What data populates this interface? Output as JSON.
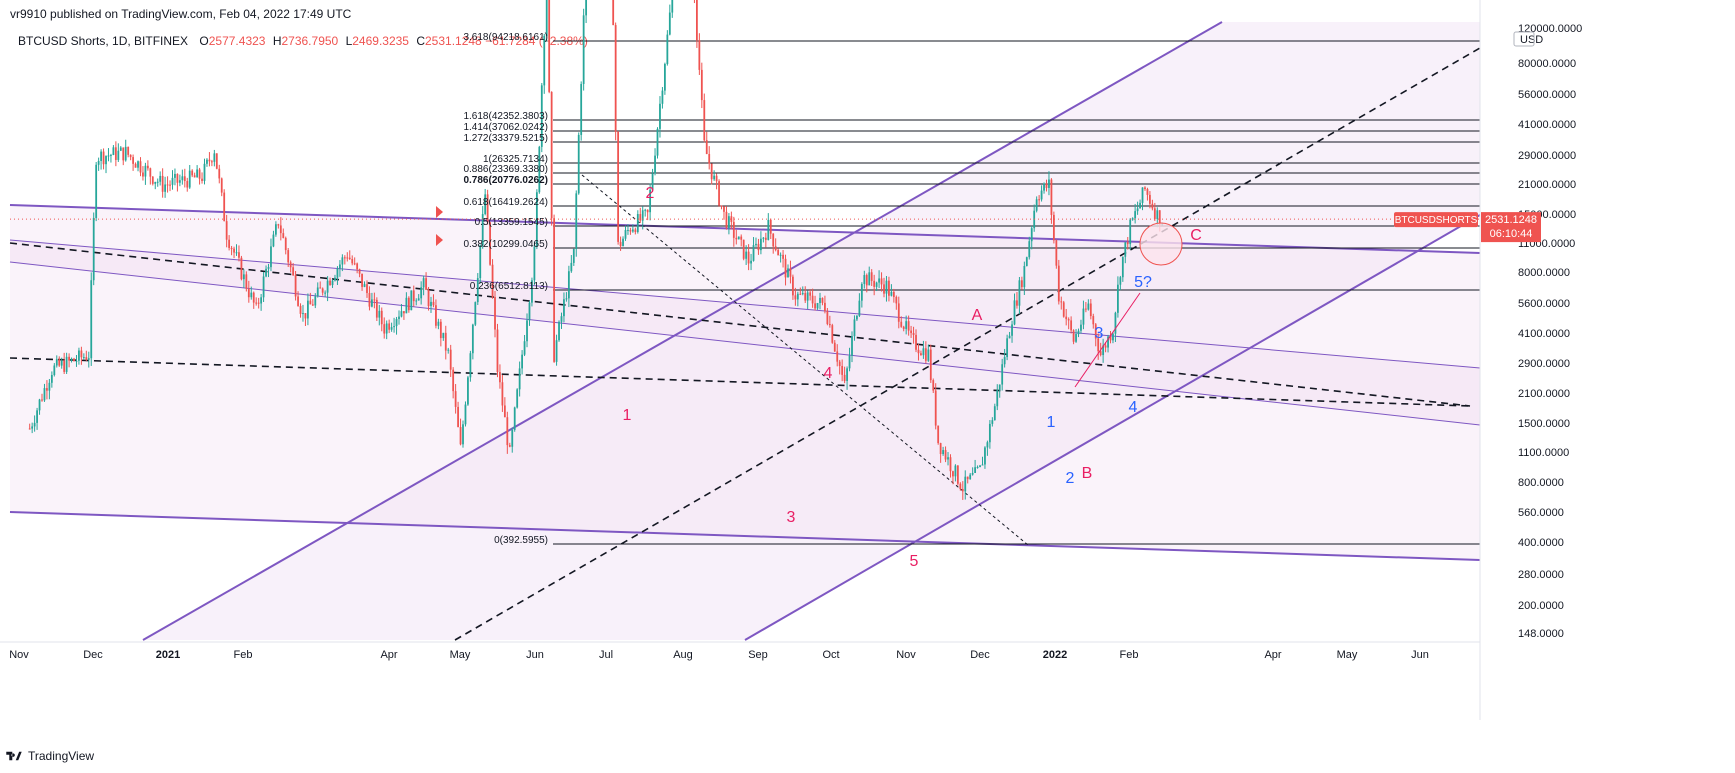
{
  "header": {
    "published": "vr9910 published on TradingView.com, Feb 04, 2022 17:49 UTC"
  },
  "legend": {
    "symbol": "BTCUSD Shorts, 1D, BITFINEX",
    "open_label": "O",
    "open": "2577.4323",
    "high_label": "H",
    "high": "2736.7950",
    "low_label": "L",
    "low": "2469.3235",
    "close_label": "C",
    "close": "2531.1248",
    "change": "−61.7284 (−2.38%)"
  },
  "price_axis": {
    "currency": "USD",
    "ticks": [
      "120000.0000",
      "80000.0000",
      "56000.0000",
      "41000.0000",
      "29000.0000",
      "21000.0000",
      "15000.0000",
      "11000.0000",
      "8000.0000",
      "5600.0000",
      "4100.0000",
      "2900.0000",
      "2100.0000",
      "1500.0000",
      "1100.0000",
      "800.0000",
      "560.0000",
      "400.0000",
      "280.0000",
      "200.0000",
      "148.0000"
    ],
    "last_label": "BTCUSDSHORTS",
    "last_price": "2531.1248",
    "countdown": "06:10:44"
  },
  "time_axis": [
    "Nov",
    "Dec",
    "2021",
    "Feb",
    "Apr",
    "May",
    "Jun",
    "Jul",
    "Aug",
    "Sep",
    "Oct",
    "Nov",
    "Dec",
    "2022",
    "Feb",
    "Apr",
    "May",
    "Jun"
  ],
  "fib_levels": [
    {
      "label": "3.618(94218.6161)",
      "bold": false
    },
    {
      "label": "1.618(42352.3803)",
      "bold": false
    },
    {
      "label": "1.414(37062.0242)",
      "bold": false
    },
    {
      "label": "1.272(33379.5215)",
      "bold": false
    },
    {
      "label": "1(26325.7134)",
      "bold": false
    },
    {
      "label": "0.886(23369.3380)",
      "bold": false
    },
    {
      "label": "0.786(20776.0262)",
      "bold": true
    },
    {
      "label": "0.618(16419.2624)",
      "bold": false
    },
    {
      "label": "0.5(13359.1545)",
      "bold": false
    },
    {
      "label": "0.382(10299.0465)",
      "bold": false
    },
    {
      "label": "0.236(6512.8113)",
      "bold": false
    },
    {
      "label": "0(392.5955)",
      "bold": false
    }
  ],
  "wave_labels": [
    {
      "text": "1",
      "color": "#e91e63"
    },
    {
      "text": "2",
      "color": "#e91e63"
    },
    {
      "text": "3",
      "color": "#e91e63"
    },
    {
      "text": "4",
      "color": "#e91e63"
    },
    {
      "text": "5",
      "color": "#e91e63"
    },
    {
      "text": "A",
      "color": "#e91e63"
    },
    {
      "text": "B",
      "color": "#e91e63"
    },
    {
      "text": "C",
      "color": "#e91e63"
    },
    {
      "text": "1",
      "color": "#2962ff"
    },
    {
      "text": "2",
      "color": "#2962ff"
    },
    {
      "text": "3",
      "color": "#2962ff"
    },
    {
      "text": "4",
      "color": "#2962ff"
    },
    {
      "text": "5?",
      "color": "#2962ff"
    }
  ],
  "footer": {
    "brand": "TradingView"
  },
  "colors": {
    "up": "#26a69a",
    "down": "#ef5350",
    "channel": "#7e57c2",
    "fill": "#f3e5f5",
    "wave_red": "#e91e63",
    "wave_blue": "#2962ff"
  },
  "chart_data": {
    "type": "candlestick",
    "title": "BTCUSD Shorts, 1D, BITFINEX",
    "y_scale": "log",
    "ylim": [
      120,
      120000
    ],
    "x_range": [
      "2020-11",
      "2022-06"
    ],
    "close_path": [
      [
        "2020-11-01",
        600
      ],
      [
        "2020-11-10",
        900
      ],
      [
        "2020-11-25",
        1000
      ],
      [
        "2020-11-28",
        3900
      ],
      [
        "2020-12-10",
        4000
      ],
      [
        "2020-12-25",
        3200
      ],
      [
        "2021-01-10",
        3400
      ],
      [
        "2021-01-15",
        4100
      ],
      [
        "2021-01-20",
        2300
      ],
      [
        "2021-02-01",
        1350
      ],
      [
        "2021-02-10",
        2500
      ],
      [
        "2021-02-20",
        1300
      ],
      [
        "2021-03-10",
        2000
      ],
      [
        "2021-03-25",
        1200
      ],
      [
        "2021-04-10",
        1600
      ],
      [
        "2021-04-20",
        1000
      ],
      [
        "2021-04-25",
        520
      ],
      [
        "2021-05-05",
        3000
      ],
      [
        "2021-05-10",
        900
      ],
      [
        "2021-05-15",
        500
      ],
      [
        "2021-05-25",
        2000
      ],
      [
        "2021-05-30",
        14000
      ],
      [
        "2021-06-02",
        1000
      ],
      [
        "2021-06-10",
        2000
      ],
      [
        "2021-06-15",
        15000
      ],
      [
        "2021-06-20",
        21000
      ],
      [
        "2021-06-25",
        22500
      ],
      [
        "2021-06-28",
        2100
      ],
      [
        "2021-07-03",
        2400
      ],
      [
        "2021-07-10",
        2600
      ],
      [
        "2021-07-20",
        12000
      ],
      [
        "2021-07-28",
        15500
      ],
      [
        "2021-08-02",
        4200
      ],
      [
        "2021-08-10",
        2600
      ],
      [
        "2021-08-20",
        1900
      ],
      [
        "2021-08-28",
        2400
      ],
      [
        "2021-09-08",
        1500
      ],
      [
        "2021-09-20",
        1400
      ],
      [
        "2021-09-28",
        800
      ],
      [
        "2021-10-05",
        1700
      ],
      [
        "2021-10-15",
        1600
      ],
      [
        "2021-10-25",
        1100
      ],
      [
        "2021-11-01",
        1000
      ],
      [
        "2021-11-05",
        550
      ],
      [
        "2021-11-15",
        400
      ],
      [
        "2021-11-22",
        450
      ],
      [
        "2021-11-28",
        700
      ],
      [
        "2021-12-05",
        1300
      ],
      [
        "2021-12-10",
        1800
      ],
      [
        "2021-12-15",
        3000
      ],
      [
        "2021-12-20",
        3200
      ],
      [
        "2021-12-24",
        1500
      ],
      [
        "2021-12-30",
        1100
      ],
      [
        "2022-01-05",
        1400
      ],
      [
        "2022-01-10",
        1000
      ],
      [
        "2022-01-15",
        1200
      ],
      [
        "2022-01-18",
        1800
      ],
      [
        "2022-01-22",
        2400
      ],
      [
        "2022-01-28",
        3100
      ],
      [
        "2022-02-02",
        2600
      ],
      [
        "2022-02-04",
        2531.1248
      ]
    ],
    "last_close": 2531.1248
  }
}
